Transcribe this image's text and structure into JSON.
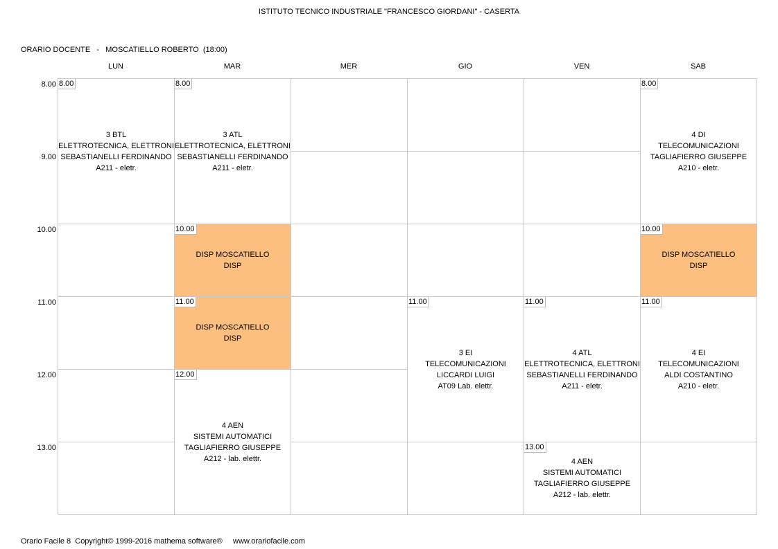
{
  "header": {
    "school": "ISTITUTO TECNICO INDUSTRIALE \"FRANCESCO GIORDANI\" - CASERTA",
    "teacher_line": "ORARIO DOCENTE   -   MOSCATIELLO ROBERTO  (18:00)"
  },
  "days": [
    "LUN",
    "MAR",
    "MER",
    "GIO",
    "VEN",
    "SAB"
  ],
  "times": [
    "8.00",
    "9.00",
    "10.00",
    "11.00",
    "12.00",
    "13.00"
  ],
  "lessons": [
    {
      "day": 0,
      "start": 0,
      "span": 2,
      "time": "8.00",
      "disp": false,
      "lines": [
        "3 BTL",
        "ELETTROTECNICA, ELETTRONI",
        "SEBASTIANELLI FERDINANDO",
        "A211 - eletr."
      ]
    },
    {
      "day": 1,
      "start": 0,
      "span": 2,
      "time": "8.00",
      "disp": false,
      "lines": [
        "3 ATL",
        "ELETTROTECNICA, ELETTRONI",
        "SEBASTIANELLI FERDINANDO",
        "A211 - eletr."
      ]
    },
    {
      "day": 5,
      "start": 0,
      "span": 2,
      "time": "8.00",
      "disp": false,
      "lines": [
        "4 DI",
        "TELECOMUNICAZIONI",
        "TAGLIAFIERRO GIUSEPPE",
        "A210 - eletr."
      ]
    },
    {
      "day": 1,
      "start": 2,
      "span": 1,
      "time": "10.00",
      "disp": true,
      "lines": [
        "DISP MOSCATIELLO",
        "DISP"
      ]
    },
    {
      "day": 5,
      "start": 2,
      "span": 1,
      "time": "10.00",
      "disp": true,
      "lines": [
        "DISP MOSCATIELLO",
        "DISP"
      ]
    },
    {
      "day": 1,
      "start": 3,
      "span": 1,
      "time": "11.00",
      "disp": true,
      "lines": [
        "DISP MOSCATIELLO",
        "DISP"
      ]
    },
    {
      "day": 3,
      "start": 3,
      "span": 2,
      "time": "11.00",
      "disp": false,
      "lines": [
        "3 EI",
        "TELECOMUNICAZIONI",
        "LICCARDI LUIGI",
        "AT09 Lab. elettr."
      ]
    },
    {
      "day": 4,
      "start": 3,
      "span": 2,
      "time": "11.00",
      "disp": false,
      "lines": [
        "4 ATL",
        "ELETTROTECNICA, ELETTRONI",
        "SEBASTIANELLI FERDINANDO",
        "A211 - eletr."
      ]
    },
    {
      "day": 5,
      "start": 3,
      "span": 2,
      "time": "11.00",
      "disp": false,
      "lines": [
        "4 EI",
        "TELECOMUNICAZIONI",
        "ALDI COSTANTINO",
        "A210 - eletr."
      ]
    },
    {
      "day": 1,
      "start": 4,
      "span": 2,
      "time": "12.00",
      "disp": false,
      "lines": [
        "4 AEN",
        "SISTEMI AUTOMATICI",
        "TAGLIAFIERRO GIUSEPPE",
        "A212 - lab. elettr."
      ]
    },
    {
      "day": 4,
      "start": 5,
      "span": 1,
      "time": "13.00",
      "disp": false,
      "lines": [
        "4 AEN",
        "SISTEMI AUTOMATICI",
        "TAGLIAFIERRO GIUSEPPE",
        "A212 - lab. elettr."
      ]
    }
  ],
  "colors": {
    "disp": "#fdbf80",
    "grid": "#c8c8c8"
  },
  "footer": "Orario Facile 8  Copyright© 1999-2016 mathema software®     www.orariofacile.com"
}
